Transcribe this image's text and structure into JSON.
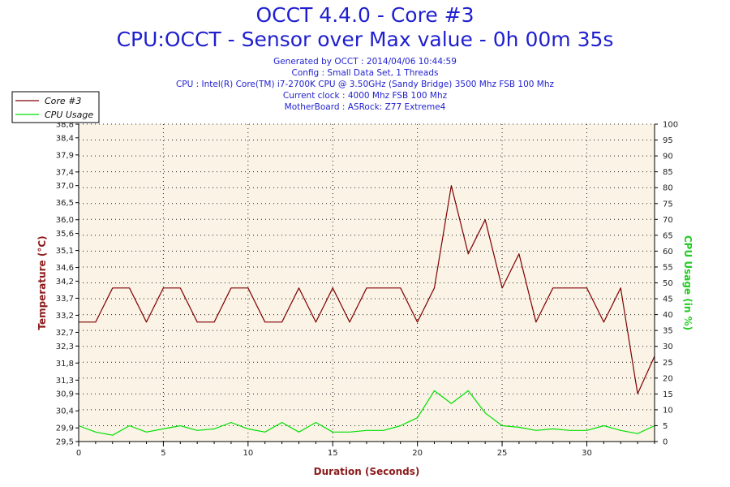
{
  "header": {
    "title": "OCCT 4.4.0 - Core #3",
    "subtitle": "CPU:OCCT - Sensor over Max value - 0h 00m 35s",
    "info_lines": [
      "Generated by OCCT : 2014/04/06 10:44:59",
      "Config : Small Data Set, 1 Threads",
      "CPU : Intel(R) Core(TM) i7-2700K CPU @ 3.50GHz (Sandy Bridge) 3500 Mhz FSB 100 Mhz",
      "Current clock : 4000 Mhz FSB 100 Mhz",
      "MotherBoard : ASRock: Z77 Extreme4"
    ]
  },
  "chart_data": {
    "type": "line",
    "title": "OCCT 4.4.0 - Core #3",
    "xlabel": "Duration (Seconds)",
    "ylabel": "Temperature (°C)",
    "y2label": "CPU Usage (in %)",
    "xlim": [
      0,
      34
    ],
    "ylim": [
      29.5,
      38.8
    ],
    "y2lim": [
      0,
      100
    ],
    "x_ticks": [
      0,
      5,
      10,
      15,
      20,
      25,
      30
    ],
    "y_ticks": [
      29.5,
      29.9,
      30.4,
      30.9,
      31.3,
      31.8,
      32.3,
      32.7,
      33.2,
      33.7,
      34.2,
      34.6,
      35.1,
      35.6,
      36.0,
      36.5,
      37.0,
      37.4,
      37.9,
      38.4,
      38.8
    ],
    "y_tick_labels": [
      "29,5",
      "29,9",
      "30,4",
      "30,9",
      "31,3",
      "31,8",
      "32,3",
      "32,7",
      "33,2",
      "33,7",
      "34,2",
      "34,6",
      "35,1",
      "35,6",
      "36,0",
      "36,5",
      "37,0",
      "37,4",
      "37,9",
      "38,4",
      "38,8"
    ],
    "y2_ticks": [
      0,
      5,
      10,
      15,
      20,
      25,
      30,
      35,
      40,
      45,
      50,
      55,
      60,
      65,
      70,
      75,
      80,
      85,
      90,
      95,
      100
    ],
    "grid": true,
    "legend_position": "top-left",
    "series": [
      {
        "name": "Core #3",
        "axis": "left",
        "color": "#800000",
        "x": [
          0,
          1,
          2,
          3,
          4,
          5,
          6,
          7,
          8,
          9,
          10,
          11,
          12,
          13,
          14,
          15,
          16,
          17,
          18,
          19,
          20,
          21,
          22,
          23,
          24,
          25,
          26,
          27,
          28,
          29,
          30,
          31,
          32,
          33,
          34
        ],
        "values": [
          33.0,
          33.0,
          34.0,
          34.0,
          33.0,
          34.0,
          34.0,
          33.0,
          33.0,
          34.0,
          34.0,
          33.0,
          33.0,
          34.0,
          33.0,
          34.0,
          33.0,
          34.0,
          34.0,
          34.0,
          33.0,
          34.0,
          37.0,
          35.0,
          36.0,
          34.0,
          35.0,
          33.0,
          34.0,
          34.0,
          34.0,
          33.0,
          34.0,
          30.9,
          32.0
        ]
      },
      {
        "name": "CPU Usage",
        "axis": "right",
        "color": "#00e000",
        "x": [
          0,
          1,
          2,
          3,
          4,
          5,
          6,
          7,
          8,
          9,
          10,
          11,
          12,
          13,
          14,
          15,
          16,
          17,
          18,
          19,
          20,
          21,
          22,
          23,
          24,
          25,
          26,
          27,
          28,
          29,
          30,
          31,
          32,
          33,
          34
        ],
        "values": [
          5,
          3,
          2,
          5,
          3,
          4,
          5,
          3.5,
          4,
          6,
          4,
          3,
          6,
          3,
          6,
          3,
          3,
          3.5,
          3.5,
          5,
          7.5,
          16,
          12,
          16,
          9,
          5,
          4.5,
          3.5,
          4,
          3.5,
          3.5,
          5,
          3.5,
          2.5,
          5
        ]
      }
    ]
  }
}
